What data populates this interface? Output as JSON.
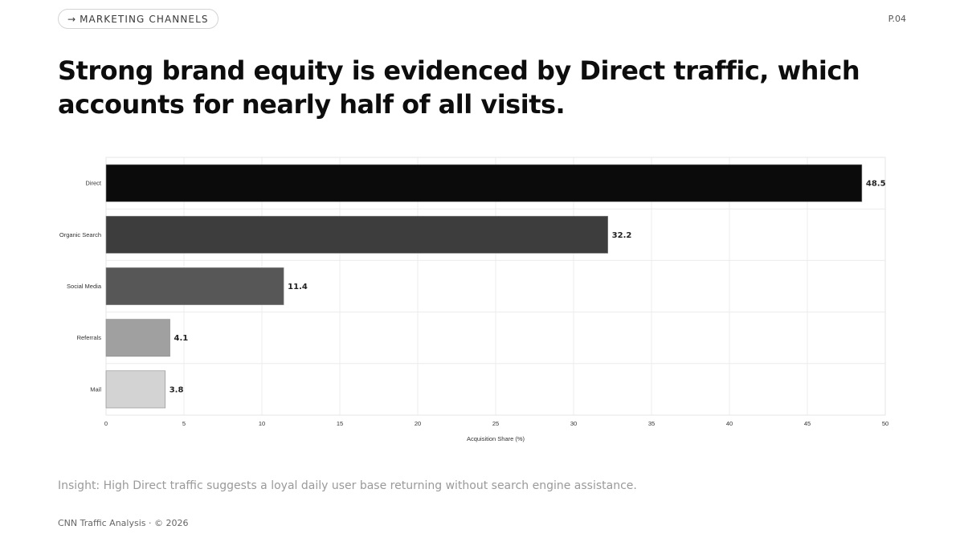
{
  "header": {
    "section_arrow": "→",
    "section_label": "MARKETING CHANNELS",
    "page_number": "P.04"
  },
  "headline": "Strong brand equity is evidenced by Direct traffic, which accounts for nearly half of all visits.",
  "insight": "Insight: High Direct traffic suggests a loyal daily user base returning without search engine assistance.",
  "footer": "CNN Traffic Analysis · © 2026",
  "chart_data": {
    "type": "bar",
    "orientation": "horizontal",
    "categories": [
      "Direct",
      "Organic Search",
      "Social Media",
      "Referrals",
      "Mail"
    ],
    "values": [
      48.5,
      32.2,
      11.4,
      4.1,
      3.8
    ],
    "bar_colors": [
      "#0b0b0b",
      "#3d3d3d",
      "#575757",
      "#a0a0a0",
      "#d3d3d3"
    ],
    "xlabel": "Acquisition Share (%)",
    "ylabel": "",
    "xlim": [
      0,
      50
    ],
    "xticks": [
      0,
      5,
      10,
      15,
      20,
      25,
      30,
      35,
      40,
      45,
      50
    ],
    "grid": true,
    "legend": "none"
  }
}
